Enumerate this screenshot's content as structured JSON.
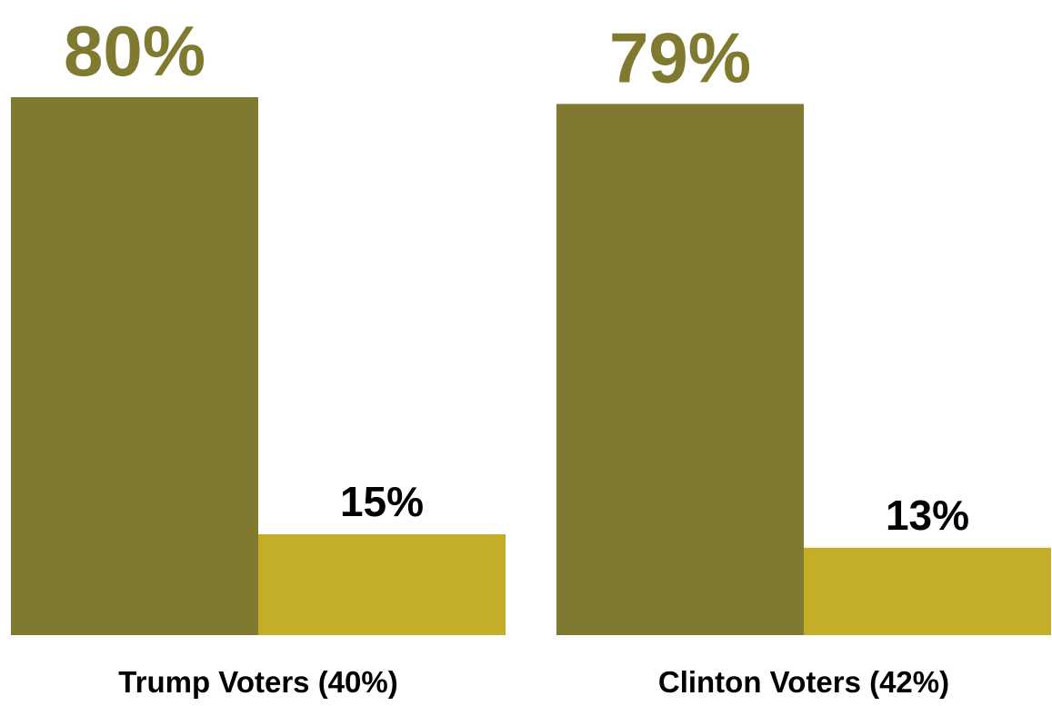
{
  "chart_data": {
    "type": "bar",
    "categories": [
      "Trump Voters (40%)",
      "Clinton Voters (42%)"
    ],
    "series": [
      {
        "values": [
          80,
          79
        ],
        "color": "#807930"
      },
      {
        "values": [
          15,
          13
        ],
        "color": "#c4ad27"
      }
    ],
    "data_labels": [
      [
        "80%",
        "15%"
      ],
      [
        "79%",
        "13%"
      ]
    ],
    "label_colors": [
      "#807930",
      "#000000"
    ],
    "ylim": [
      0,
      100
    ],
    "grid": false,
    "legend": "none",
    "title": "",
    "xlabel": "",
    "ylabel": ""
  }
}
